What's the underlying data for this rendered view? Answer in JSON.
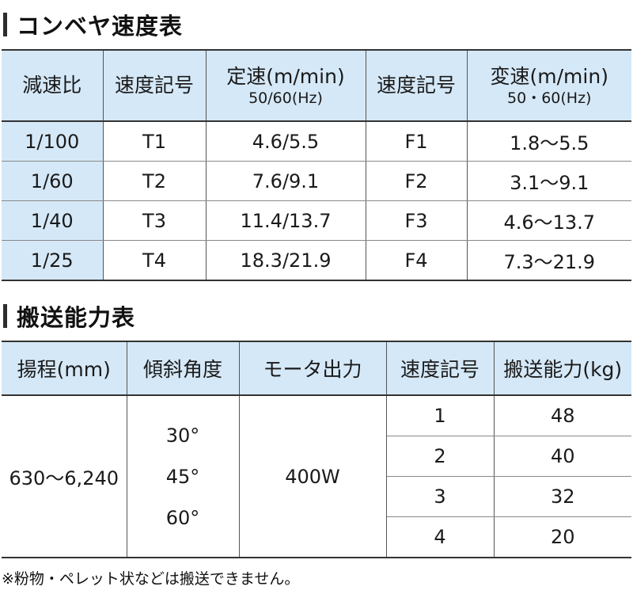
{
  "speed_section": {
    "title": "コンベヤ速度表",
    "headers": {
      "ratio": "減速比",
      "code1": "速度記号",
      "constant": "定速(m/min)",
      "constant_sub": "50/60(Hz)",
      "code2": "速度記号",
      "variable": "変速(m/min)",
      "variable_sub": "50・60(Hz)"
    },
    "rows": [
      {
        "ratio": "1/100",
        "code1": "T1",
        "constant": "4.6/5.5",
        "code2": "F1",
        "variable": "1.8〜5.5"
      },
      {
        "ratio": "1/60",
        "code1": "T2",
        "constant": "7.6/9.1",
        "code2": "F2",
        "variable": "3.1〜9.1"
      },
      {
        "ratio": "1/40",
        "code1": "T3",
        "constant": "11.4/13.7",
        "code2": "F3",
        "variable": "4.6〜13.7"
      },
      {
        "ratio": "1/25",
        "code1": "T4",
        "constant": "18.3/21.9",
        "code2": "F4",
        "variable": "7.3〜21.9"
      }
    ]
  },
  "capacity_section": {
    "title": "搬送能力表",
    "headers": {
      "lift": "揚程(mm)",
      "angle": "傾斜角度",
      "motor": "モータ出力",
      "code": "速度記号",
      "capacity": "搬送能力(kg)"
    },
    "lift": "630〜6,240",
    "angles": [
      "30°",
      "45°",
      "60°"
    ],
    "motor": "400W",
    "rows": [
      {
        "code": "1",
        "capacity": "48"
      },
      {
        "code": "2",
        "capacity": "40"
      },
      {
        "code": "3",
        "capacity": "32"
      },
      {
        "code": "4",
        "capacity": "20"
      }
    ]
  },
  "footnote": "※粉物・ペレット状などは搬送できません。",
  "colors": {
    "header_bg": "#d5e8f7",
    "text": "#1a1a1a"
  }
}
